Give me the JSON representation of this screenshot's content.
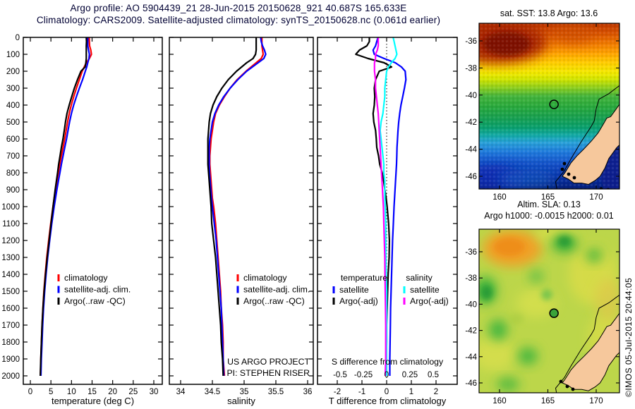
{
  "title": {
    "line1": "Argo profile: AO 5904439_21 28-Jun-2015 20150628_921 40.687S 165.633E",
    "line2": "Climatology: CARS2009. Satellite-adjusted climatology: synTS_20150628.nc (0.061d earlier)"
  },
  "credit": "©IMOS 05-Jul-2015 20:44:05",
  "colors": {
    "climatology": "#ff0000",
    "satellite_adj_clim": "#0000ff",
    "argo": "#000000",
    "t_satellite": "#0000ff",
    "t_argo": "#000000",
    "s_satellite": "#00ffff",
    "s_argo": "#ff00ff",
    "land": "#f6c89c",
    "sla_base": "#bcd64a",
    "title_text": "#000033",
    "sst_gradient": [
      [
        "0%",
        "#c03800"
      ],
      [
        "6%",
        "#d85200"
      ],
      [
        "12%",
        "#f07800"
      ],
      [
        "18%",
        "#ffa200"
      ],
      [
        "24%",
        "#ffce00"
      ],
      [
        "30%",
        "#f2ea00"
      ],
      [
        "34%",
        "#cfe400"
      ],
      [
        "39%",
        "#8cce1e"
      ],
      [
        "44%",
        "#44b43c"
      ],
      [
        "50%",
        "#2aaa3c"
      ],
      [
        "57%",
        "#18a050"
      ],
      [
        "63%",
        "#0aa06e"
      ],
      [
        "68%",
        "#14aaaa"
      ],
      [
        "72%",
        "#28a0d8"
      ],
      [
        "78%",
        "#1e78dc"
      ],
      [
        "85%",
        "#1450c8"
      ],
      [
        "92%",
        "#0a32aa"
      ],
      [
        "100%",
        "#041e78"
      ]
    ]
  },
  "depth_axis": {
    "ylim": [
      0,
      2050
    ],
    "tick_values": [
      0,
      100,
      200,
      300,
      400,
      500,
      600,
      700,
      800,
      900,
      1000,
      1100,
      1200,
      1300,
      1400,
      1500,
      1600,
      1700,
      1800,
      1900,
      2000
    ],
    "tick_labels": [
      "0",
      "100",
      "200",
      "300",
      "400",
      "500",
      "600",
      "700",
      "800",
      "900",
      "1000",
      "1100",
      "1200",
      "1300",
      "1400",
      "1500",
      "1600",
      "1700",
      "1800",
      "1900",
      "2000"
    ]
  },
  "chart_data": [
    {
      "type": "line",
      "name": "temperature-profile-plot",
      "xlabel": "temperature (deg C)",
      "ylabel": "",
      "xlim": [
        -1.7,
        32.1
      ],
      "xtick_values": [
        0,
        5,
        10,
        15,
        20,
        25,
        30
      ],
      "xtick_labels": [
        "0",
        "5",
        "10",
        "15",
        "20",
        "25",
        "30"
      ],
      "depths": [
        0,
        25,
        50,
        75,
        100,
        125,
        150,
        175,
        200,
        250,
        300,
        350,
        400,
        450,
        500,
        550,
        600,
        650,
        700,
        750,
        800,
        850,
        900,
        950,
        1000,
        1100,
        1200,
        1300,
        1400,
        1500,
        1600,
        1700,
        1800,
        1900,
        2000
      ],
      "series": [
        {
          "name": "climatology",
          "color": "#ff0000",
          "values": [
            14.3,
            14.35,
            14.4,
            14.7,
            14.85,
            14.35,
            13.6,
            13.1,
            12.6,
            11.9,
            11.2,
            10.55,
            9.95,
            9.45,
            9.05,
            8.7,
            8.35,
            7.95,
            7.55,
            7.15,
            6.8,
            6.45,
            6.1,
            5.8,
            5.5,
            4.95,
            4.45,
            4.0,
            3.62,
            3.3,
            3.05,
            2.85,
            2.7,
            2.55,
            2.45
          ]
        },
        {
          "name": "satellite-adj-clim",
          "color": "#0000ff",
          "values": [
            13.95,
            13.95,
            13.95,
            14.15,
            14.35,
            14.25,
            13.95,
            13.7,
            13.35,
            12.68,
            11.92,
            11.2,
            10.53,
            9.98,
            9.54,
            9.16,
            8.79,
            8.37,
            7.96,
            7.55,
            7.18,
            6.81,
            6.44,
            6.12,
            5.8,
            5.22,
            4.69,
            4.22,
            3.82,
            3.48,
            3.21,
            3.0,
            2.84,
            2.68,
            2.58
          ]
        },
        {
          "name": "argo-raw-qc",
          "color": "#000000",
          "values": [
            13.6,
            13.65,
            13.6,
            13.6,
            13.6,
            13.6,
            13.5,
            13.3,
            12.3,
            11.45,
            10.7,
            10.07,
            9.45,
            8.9,
            8.53,
            8.25,
            7.93,
            7.55,
            7.22,
            6.87,
            6.62,
            6.33,
            6.03,
            5.78,
            5.52,
            5.03,
            4.56,
            4.1,
            3.68,
            3.34,
            3.07,
            2.85,
            2.7,
            2.54,
            2.42
          ]
        }
      ],
      "legend": [
        {
          "label": "climatology",
          "color": "#ff0000"
        },
        {
          "label": "satellite-adj. clim.",
          "color": "#0000ff"
        },
        {
          "label": "Argo(..raw -QC)",
          "color": "#000000"
        }
      ]
    },
    {
      "type": "line",
      "name": "salinity-profile-plot",
      "xlabel": "salinity",
      "ylabel": "",
      "xlim": [
        33.82,
        36.09
      ],
      "xtick_values": [
        34,
        34.5,
        35,
        35.5,
        36
      ],
      "xtick_labels": [
        "34",
        "34.5",
        "35",
        "35.5",
        "36"
      ],
      "depths": [
        0,
        25,
        50,
        75,
        100,
        125,
        150,
        175,
        200,
        250,
        300,
        350,
        400,
        450,
        500,
        550,
        600,
        650,
        700,
        750,
        800,
        850,
        900,
        950,
        1000,
        1100,
        1200,
        1300,
        1400,
        1500,
        1600,
        1700,
        1800,
        1900,
        2000
      ],
      "series": [
        {
          "name": "climatology",
          "color": "#ff0000",
          "values": [
            35.28,
            35.28,
            35.28,
            35.29,
            35.3,
            35.27,
            35.19,
            35.11,
            35.03,
            34.89,
            34.78,
            34.69,
            34.61,
            34.55,
            34.52,
            34.5,
            34.48,
            34.47,
            34.46,
            34.46,
            34.47,
            34.48,
            34.49,
            34.5,
            34.52,
            34.55,
            34.57,
            34.59,
            34.61,
            34.63,
            34.64,
            34.66,
            34.67,
            34.67,
            34.69
          ]
        },
        {
          "name": "satellite-adj-clim",
          "color": "#0000ff",
          "values": [
            35.26,
            35.27,
            35.29,
            35.32,
            35.34,
            35.31,
            35.22,
            35.13,
            35.04,
            34.9,
            34.78,
            34.68,
            34.6,
            34.54,
            34.5,
            34.48,
            34.46,
            34.45,
            34.45,
            34.45,
            34.455,
            34.465,
            34.475,
            34.487,
            34.5,
            34.53,
            34.56,
            34.58,
            34.6,
            34.62,
            34.64,
            34.65,
            34.66,
            34.67,
            34.68
          ]
        },
        {
          "name": "argo-raw-qc",
          "color": "#000000",
          "values": [
            35.19,
            35.19,
            35.19,
            35.19,
            35.18,
            35.14,
            35.04,
            34.96,
            34.88,
            34.75,
            34.65,
            34.57,
            34.51,
            34.47,
            34.45,
            34.44,
            34.43,
            34.43,
            34.43,
            34.43,
            34.44,
            34.45,
            34.46,
            34.47,
            34.48,
            34.49,
            34.52,
            34.55,
            34.57,
            34.59,
            34.61,
            34.63,
            34.64,
            34.66,
            34.67
          ]
        }
      ],
      "legend": [
        {
          "label": "climatology",
          "color": "#ff0000"
        },
        {
          "label": "satellite-adj. clim.",
          "color": "#0000ff"
        },
        {
          "label": "Argo(..raw -QC)",
          "color": "#000000"
        }
      ],
      "annotations": [
        "US ARGO PROJECT",
        "PI: STEPHEN RISER"
      ]
    },
    {
      "type": "line",
      "name": "difference-from-climatology-plot",
      "xlabel": "T difference from climatology",
      "ylabel": "",
      "xlim": [
        -2.8,
        2.86
      ],
      "xtick_values": [
        -2,
        -1,
        0,
        1,
        2
      ],
      "xtick_labels": [
        "-2",
        "-1",
        "0",
        "1",
        "2"
      ],
      "s_axis": {
        "label": "S difference from climatology",
        "xlim": [
          -0.73,
          0.78
        ],
        "tick_values": [
          -0.5,
          -0.25,
          0,
          0.25,
          0.5
        ],
        "tick_labels": [
          "-0.5",
          "-0.25",
          "0",
          "0.25",
          "0.5"
        ]
      },
      "zero_line": true,
      "depths": [
        0,
        25,
        50,
        75,
        100,
        125,
        150,
        175,
        200,
        250,
        300,
        350,
        400,
        450,
        500,
        550,
        600,
        650,
        700,
        750,
        800,
        850,
        900,
        950,
        1000,
        1100,
        1200,
        1300,
        1400,
        1500,
        1600,
        1700,
        1800,
        1900,
        2000
      ],
      "series": [
        {
          "name": "t-satellite",
          "axis": "T",
          "color": "#0000ff",
          "values": [
            -0.35,
            -0.4,
            -0.45,
            -0.55,
            -0.5,
            -0.1,
            0.35,
            0.6,
            0.75,
            0.78,
            0.72,
            0.65,
            0.58,
            0.53,
            0.49,
            0.46,
            0.44,
            0.42,
            0.41,
            0.4,
            0.38,
            0.36,
            0.34,
            0.32,
            0.3,
            0.27,
            0.24,
            0.22,
            0.2,
            0.18,
            0.16,
            0.15,
            0.14,
            0.13,
            0.13
          ]
        },
        {
          "name": "t-argo-minus-adj",
          "axis": "T",
          "color": "#000000",
          "values": [
            -0.7,
            -0.7,
            -0.8,
            -1.1,
            -1.25,
            -0.75,
            -0.1,
            0.2,
            -0.3,
            -0.45,
            -0.5,
            -0.48,
            -0.5,
            -0.55,
            -0.52,
            -0.45,
            -0.42,
            -0.4,
            -0.33,
            -0.28,
            -0.18,
            -0.12,
            -0.07,
            -0.02,
            0.02,
            0.08,
            0.11,
            0.1,
            0.06,
            0.04,
            0.02,
            0.0,
            0.0,
            -0.01,
            -0.03
          ]
        },
        {
          "name": "s-satellite",
          "axis": "S",
          "color": "#00ffff",
          "values": [
            0.07,
            0.08,
            0.09,
            0.1,
            0.11,
            0.09,
            0.05,
            0.02,
            0.0,
            -0.01,
            -0.02,
            -0.02,
            -0.03,
            -0.04,
            -0.06,
            -0.07,
            -0.06,
            -0.05,
            -0.04,
            -0.03,
            -0.03,
            -0.02,
            -0.02,
            -0.02,
            -0.015,
            -0.01,
            -0.01,
            -0.008,
            -0.005,
            0,
            0,
            0,
            0,
            0,
            0
          ]
        },
        {
          "name": "s-argo-minus-adj",
          "axis": "S",
          "color": "#ff00ff",
          "values": [
            -0.09,
            -0.09,
            -0.09,
            -0.1,
            -0.12,
            -0.12,
            -0.13,
            -0.13,
            -0.13,
            -0.12,
            -0.12,
            -0.11,
            -0.1,
            -0.09,
            -0.085,
            -0.08,
            -0.075,
            -0.07,
            -0.065,
            -0.06,
            -0.055,
            -0.05,
            -0.045,
            -0.04,
            -0.035,
            -0.03,
            -0.025,
            -0.02,
            -0.018,
            -0.015,
            -0.012,
            -0.01,
            -0.01,
            -0.01,
            -0.015
          ]
        }
      ],
      "legend_headers": [
        "temperature",
        "salinity"
      ],
      "legend": [
        {
          "label": "satellite",
          "color": "#0000ff",
          "col": 0
        },
        {
          "label": "Argo(-adj)",
          "color": "#000000",
          "col": 0
        },
        {
          "label": "satellite",
          "color": "#00ffff",
          "col": 1
        },
        {
          "label": "Argo(-adj)",
          "color": "#ff00ff",
          "col": 1
        }
      ]
    }
  ],
  "maps": {
    "sst": {
      "type": "heatmap",
      "title": "sat. SST: 13.8 Argo: 13.6",
      "sat_sst": 13.8,
      "argo_sst": 13.6,
      "lon_range": [
        157.9,
        172.4
      ],
      "lat_range": [
        -47.0,
        -34.7
      ],
      "xtick_values": [
        160,
        165,
        170
      ],
      "xtick_labels": [
        "160",
        "165",
        "170"
      ],
      "ytick_values": [
        -36,
        -38,
        -40,
        -42,
        -44,
        -46
      ],
      "ytick_labels": [
        "-36",
        "-38",
        "-40",
        "-42",
        "-44",
        "-46"
      ],
      "marker": {
        "lon": 165.633,
        "lat": -40.687
      }
    },
    "sla": {
      "type": "heatmap",
      "title_line1": "Altim. SLA: 0.13",
      "title_line2": "Argo h1000: -0.0015 h2000: 0.01",
      "sla": 0.13,
      "argo_h1000": -0.0015,
      "argo_h2000": 0.01,
      "lon_range": [
        157.9,
        172.4
      ],
      "lat_range": [
        -46.8,
        -34.3
      ],
      "xtick_values": [
        160,
        165,
        170
      ],
      "xtick_labels": [
        "160",
        "165",
        "170"
      ],
      "ytick_values": [
        -36,
        -38,
        -40,
        -42,
        -44,
        -46
      ],
      "ytick_labels": [
        "-36",
        "-38",
        "-40",
        "-42",
        "-44",
        "-46"
      ],
      "marker": {
        "lon": 165.633,
        "lat": -40.687
      }
    }
  }
}
